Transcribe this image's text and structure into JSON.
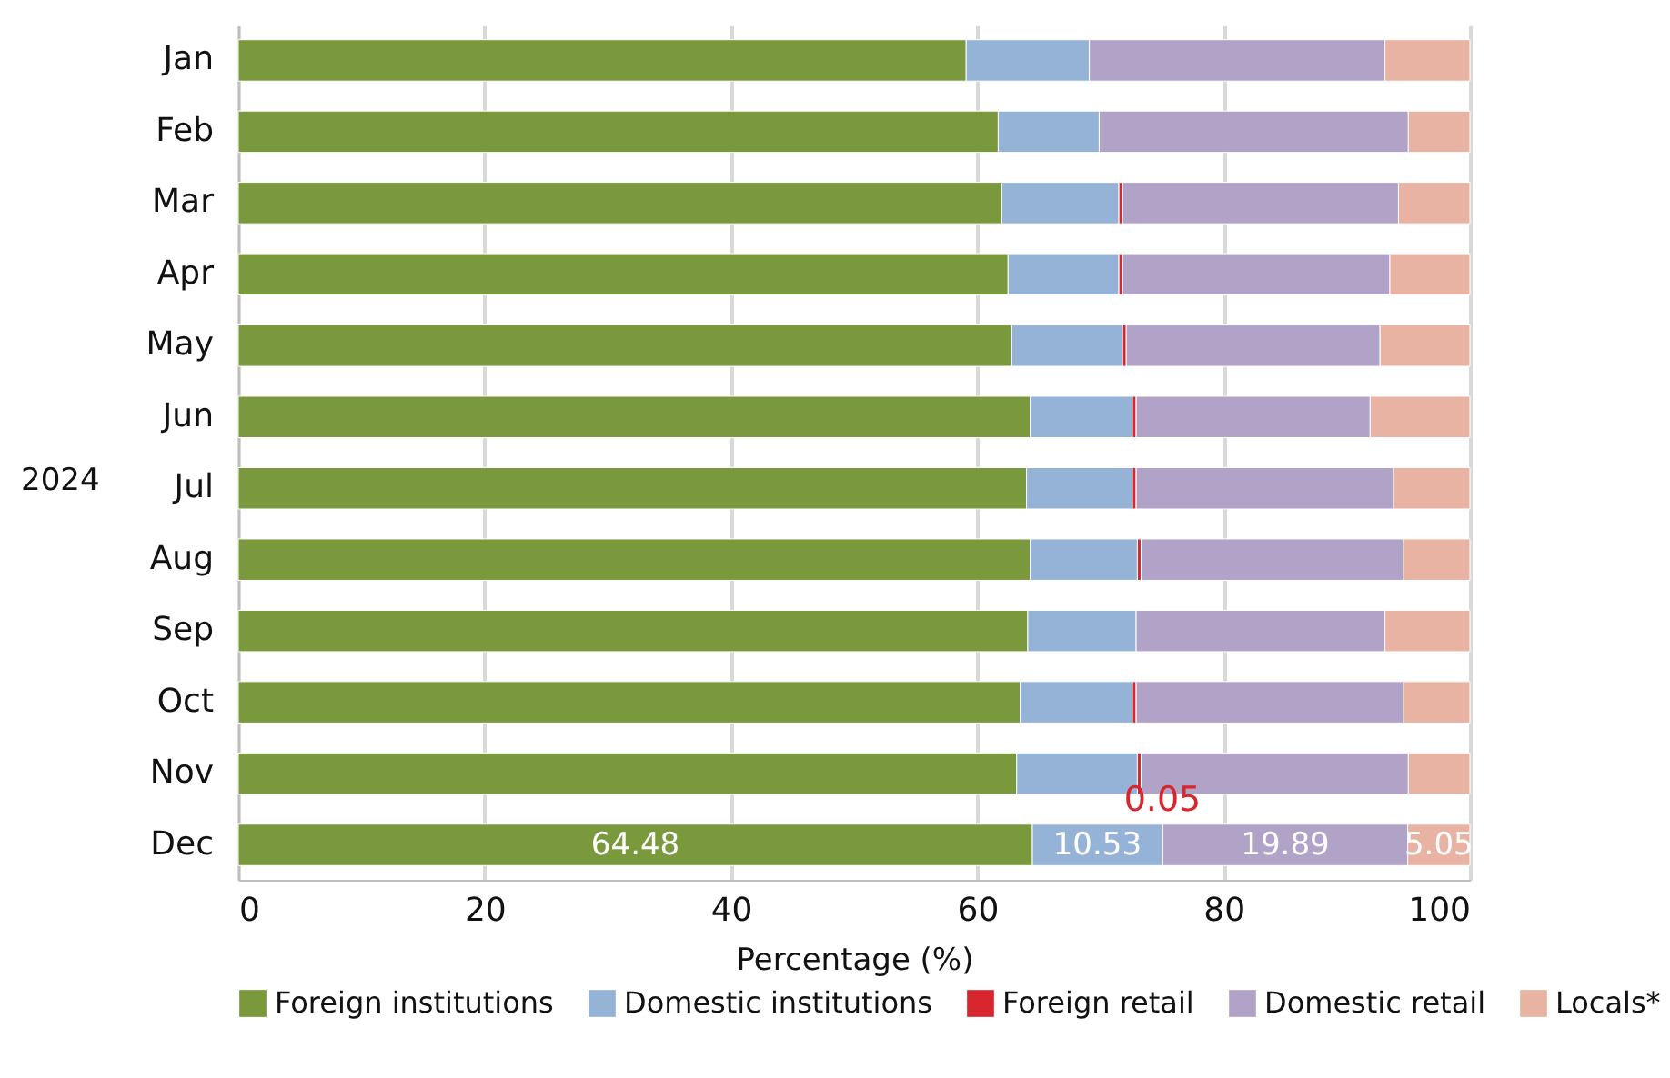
{
  "chart_data": {
    "type": "bar",
    "orientation": "horizontal",
    "stacked": true,
    "ylabel": "2024",
    "xlabel": "Percentage (%)",
    "categories": [
      "Jan",
      "Feb",
      "Mar",
      "Apr",
      "May",
      "Jun",
      "Jul",
      "Aug",
      "Sep",
      "Oct",
      "Nov",
      "Dec"
    ],
    "series": [
      {
        "name": "Foreign institutions",
        "color": "#7a993c",
        "values": [
          59.1,
          61.7,
          62.0,
          62.5,
          62.8,
          64.3,
          64.0,
          64.3,
          64.1,
          63.5,
          63.2,
          64.48
        ],
        "value_labels": [
          null,
          null,
          null,
          null,
          null,
          null,
          null,
          null,
          null,
          null,
          null,
          "64.48"
        ]
      },
      {
        "name": "Domestic institutions",
        "color": "#95b3d7",
        "values": [
          10.0,
          8.2,
          9.5,
          9.0,
          9.0,
          8.3,
          8.6,
          8.7,
          8.8,
          9.1,
          9.8,
          10.53
        ],
        "value_labels": [
          null,
          null,
          null,
          null,
          null,
          null,
          null,
          null,
          null,
          null,
          null,
          "10.53"
        ]
      },
      {
        "name": "Foreign retail",
        "color": "#d7262e",
        "values": [
          null,
          null,
          0.3,
          0.3,
          0.3,
          0.3,
          0.3,
          0.3,
          null,
          0.3,
          0.3,
          0.05
        ],
        "value_labels": [
          null,
          null,
          null,
          null,
          null,
          null,
          null,
          null,
          null,
          null,
          null,
          "0.05"
        ]
      },
      {
        "name": "Domestic retail",
        "color": "#b1a3c8",
        "values": [
          24.0,
          25.1,
          22.4,
          21.7,
          20.6,
          19.0,
          20.9,
          21.3,
          20.2,
          21.7,
          21.7,
          19.89
        ],
        "value_labels": [
          null,
          null,
          null,
          null,
          null,
          null,
          null,
          null,
          null,
          null,
          null,
          "19.89"
        ]
      },
      {
        "name": "Locals*",
        "color": "#e8b3a2",
        "values": [
          6.9,
          5.0,
          5.8,
          6.5,
          7.3,
          8.1,
          6.2,
          5.4,
          6.9,
          5.4,
          5.0,
          5.05
        ],
        "value_labels": [
          null,
          null,
          null,
          null,
          null,
          null,
          null,
          null,
          null,
          null,
          null,
          "5.05"
        ]
      }
    ],
    "xlim": [
      0,
      100
    ],
    "xticks": [
      0,
      20,
      40,
      60,
      80,
      100
    ],
    "grid": "x",
    "legend": "bottom"
  }
}
